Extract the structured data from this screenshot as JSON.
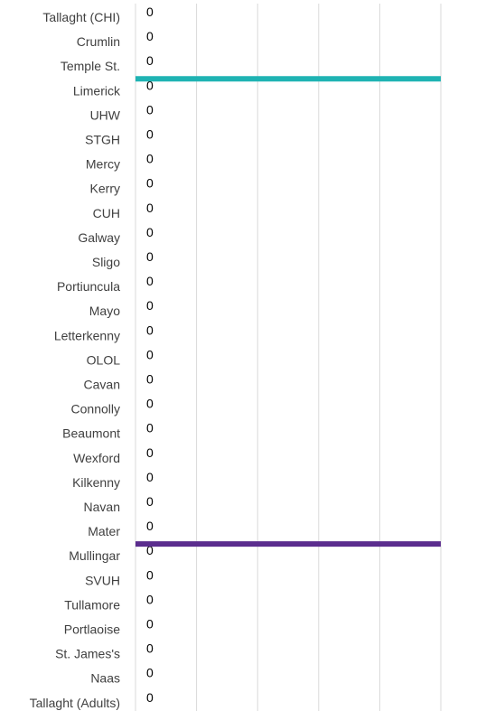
{
  "chart_data": {
    "type": "bar",
    "orientation": "horizontal",
    "categories": [
      "Tallaght (CHI)",
      "Crumlin",
      "Temple St.",
      "Limerick",
      "UHW",
      "STGH",
      "Mercy",
      "Kerry",
      "CUH",
      "Galway",
      "Sligo",
      "Portiuncula",
      "Mayo",
      "Letterkenny",
      "OLOL",
      "Cavan",
      "Connolly",
      "Beaumont",
      "Wexford",
      "Kilkenny",
      "Navan",
      "Mater",
      "Mullingar",
      "SVUH",
      "Tullamore",
      "Portlaoise",
      "St. James's",
      "Naas",
      "Tallaght (Adults)"
    ],
    "values": [
      0,
      0,
      0,
      0,
      0,
      0,
      0,
      0,
      0,
      0,
      0,
      0,
      0,
      0,
      0,
      0,
      0,
      0,
      0,
      0,
      0,
      0,
      0,
      0,
      0,
      0,
      0,
      0,
      0
    ],
    "data_labels": [
      "0",
      "0",
      "0",
      "0",
      "0",
      "0",
      "0",
      "0",
      "0",
      "0",
      "0",
      "0",
      "0",
      "0",
      "0",
      "0",
      "0",
      "0",
      "0",
      "0",
      "0",
      "0",
      "0",
      "0",
      "0",
      "0",
      "0",
      "0",
      "0"
    ],
    "reference_lines": [
      {
        "after_category": "Temple St.",
        "color": "#1fb3b3"
      },
      {
        "after_category": "Mater",
        "color": "#5b2d8e"
      }
    ],
    "grid": true,
    "gridline_color": "#d9d9d9",
    "label_color": "#404040"
  }
}
